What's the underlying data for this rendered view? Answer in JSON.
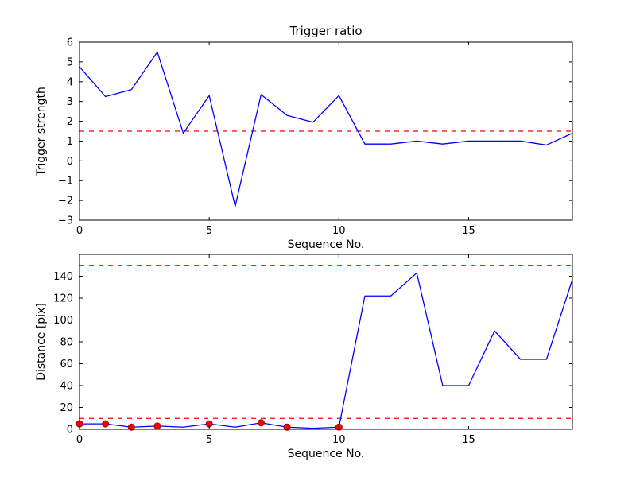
{
  "figure": {
    "background": "#ffffff"
  },
  "colors": {
    "series_line": "#0000ff",
    "threshold_line": "#ff0000",
    "marker_fill": "#ff0000",
    "marker_edge": "#990000",
    "axis": "#000000"
  },
  "chart_data": [
    {
      "type": "line",
      "title": "Trigger ratio",
      "xlabel": "Sequence No.",
      "ylabel": "Trigger strength",
      "xlim": [
        0,
        19
      ],
      "ylim": [
        -3,
        6
      ],
      "xticks": [
        0,
        5,
        10,
        15
      ],
      "yticks": [
        -3,
        -2,
        -1,
        0,
        1,
        2,
        3,
        4,
        5,
        6
      ],
      "grid": false,
      "legend": null,
      "x": [
        0,
        1,
        2,
        3,
        4,
        5,
        6,
        7,
        8,
        9,
        10,
        11,
        12,
        13,
        14,
        15,
        16,
        17,
        18,
        19
      ],
      "series": [
        {
          "name": "trigger-strength",
          "color": "#0000ff",
          "values": [
            4.75,
            3.25,
            3.6,
            5.5,
            1.4,
            3.3,
            -2.3,
            3.35,
            2.3,
            1.95,
            3.3,
            0.85,
            0.85,
            1.0,
            0.85,
            1.0,
            1.0,
            1.0,
            0.8,
            1.4
          ],
          "marker_indices": [],
          "marker_color": "#ff0000",
          "marker_edge": "#990000"
        }
      ],
      "thresholds": [
        {
          "y": 1.5,
          "color": "#ff0000",
          "style": "dashed"
        }
      ]
    },
    {
      "type": "line",
      "title": "",
      "xlabel": "Sequence No.",
      "ylabel": "Distance [pix]",
      "xlim": [
        0,
        19
      ],
      "ylim": [
        0,
        160
      ],
      "xticks": [
        0,
        5,
        10,
        15
      ],
      "yticks": [
        0,
        20,
        40,
        60,
        80,
        100,
        120,
        140
      ],
      "grid": false,
      "legend": null,
      "x": [
        0,
        1,
        2,
        3,
        4,
        5,
        6,
        7,
        8,
        9,
        10,
        11,
        12,
        13,
        14,
        15,
        16,
        17,
        18,
        19
      ],
      "series": [
        {
          "name": "distance",
          "color": "#0000ff",
          "values": [
            5,
            5,
            2,
            3,
            2,
            5,
            2,
            6,
            2,
            1,
            2,
            122,
            122,
            143,
            40,
            40,
            90,
            64,
            64,
            137
          ],
          "marker_indices": [
            0,
            1,
            2,
            3,
            5,
            7,
            8,
            10
          ],
          "marker_color": "#ff0000",
          "marker_edge": "#990000"
        }
      ],
      "thresholds": [
        {
          "y": 150,
          "color": "#ff0000",
          "style": "dashed"
        },
        {
          "y": 10,
          "color": "#ff0000",
          "style": "dashed"
        }
      ]
    }
  ]
}
